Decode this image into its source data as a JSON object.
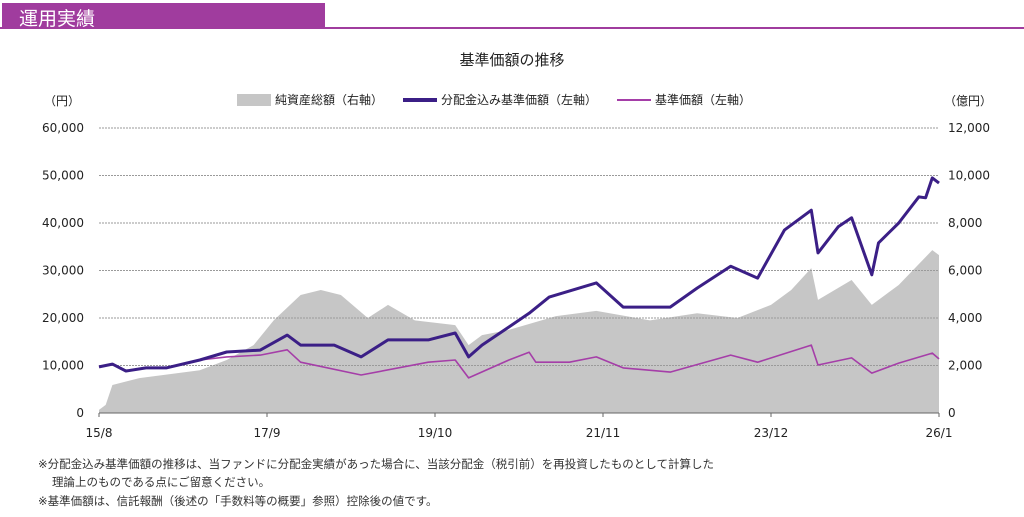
{
  "header": {
    "section_title": "運用実績",
    "accent_color": "#a03c9e"
  },
  "chart_data": {
    "type": "line",
    "title": "基準価額の推移",
    "left_unit": "（円）",
    "right_unit": "（億円）",
    "ylim_left": [
      0,
      60000
    ],
    "ylim_right": [
      0,
      12000
    ],
    "yticks_left": [
      "0",
      "10,000",
      "20,000",
      "30,000",
      "40,000",
      "50,000",
      "60,000"
    ],
    "yticks_right": [
      "0",
      "2,000",
      "4,000",
      "6,000",
      "8,000",
      "10,000",
      "12,000"
    ],
    "xlim": [
      "2015-08",
      "2026-01"
    ],
    "xticks": [
      {
        "date": "2015-08",
        "label": "15/8"
      },
      {
        "date": "2017-09",
        "label": "17/9"
      },
      {
        "date": "2019-10",
        "label": "19/10"
      },
      {
        "date": "2021-11",
        "label": "21/11"
      },
      {
        "date": "2023-12",
        "label": "23/12"
      },
      {
        "date": "2026-01",
        "label": "26/1"
      }
    ],
    "grid": true,
    "legend_position": "top",
    "series": [
      {
        "name": "純資産総額（右軸）",
        "kind": "area",
        "axis": "right",
        "color": "#c6c6c6",
        "points": [
          [
            "2015-08",
            130
          ],
          [
            "2015-09",
            340
          ],
          [
            "2015-10",
            1180
          ],
          [
            "2016-02",
            1470
          ],
          [
            "2016-11",
            1800
          ],
          [
            "2017-03",
            2230
          ],
          [
            "2017-07",
            2860
          ],
          [
            "2017-10",
            3900
          ],
          [
            "2018-02",
            4970
          ],
          [
            "2018-05",
            5180
          ],
          [
            "2018-08",
            4970
          ],
          [
            "2018-12",
            4000
          ],
          [
            "2019-03",
            4550
          ],
          [
            "2019-07",
            3900
          ],
          [
            "2020-01",
            3700
          ],
          [
            "2020-03",
            2860
          ],
          [
            "2020-05",
            3280
          ],
          [
            "2020-09",
            3500
          ],
          [
            "2021-04",
            4080
          ],
          [
            "2021-10",
            4300
          ],
          [
            "2022-06",
            3900
          ],
          [
            "2023-01",
            4200
          ],
          [
            "2023-07",
            4000
          ],
          [
            "2023-12",
            4550
          ],
          [
            "2024-03",
            5180
          ],
          [
            "2024-06",
            6100
          ],
          [
            "2024-07",
            4760
          ],
          [
            "2024-12",
            5600
          ],
          [
            "2025-03",
            4550
          ],
          [
            "2025-07",
            5390
          ],
          [
            "2025-12",
            6860
          ],
          [
            "2026-01",
            6650
          ]
        ]
      },
      {
        "name": "分配金込み基準価額（左軸）",
        "kind": "line",
        "axis": "left",
        "color": "#3b1f86",
        "points": [
          [
            "2015-08",
            9700
          ],
          [
            "2015-10",
            10300
          ],
          [
            "2015-12",
            8850
          ],
          [
            "2016-03",
            9500
          ],
          [
            "2016-06",
            9500
          ],
          [
            "2016-11",
            11150
          ],
          [
            "2017-03",
            12850
          ],
          [
            "2017-08",
            13250
          ],
          [
            "2017-12",
            16400
          ],
          [
            "2018-02",
            14300
          ],
          [
            "2018-07",
            14300
          ],
          [
            "2018-11",
            11800
          ],
          [
            "2019-03",
            15400
          ],
          [
            "2019-09",
            15400
          ],
          [
            "2020-01",
            16850
          ],
          [
            "2020-03",
            11800
          ],
          [
            "2020-05",
            14300
          ],
          [
            "2020-09",
            18100
          ],
          [
            "2020-12",
            21000
          ],
          [
            "2021-03",
            24400
          ],
          [
            "2021-10",
            27400
          ],
          [
            "2022-02",
            22300
          ],
          [
            "2022-06",
            22300
          ],
          [
            "2022-09",
            22300
          ],
          [
            "2023-01",
            26300
          ],
          [
            "2023-06",
            30900
          ],
          [
            "2023-10",
            28400
          ],
          [
            "2024-02",
            38500
          ],
          [
            "2024-06",
            42700
          ],
          [
            "2024-07",
            33700
          ],
          [
            "2024-10",
            39200
          ],
          [
            "2024-12",
            41100
          ],
          [
            "2025-03",
            29100
          ],
          [
            "2025-04",
            35800
          ],
          [
            "2025-07",
            40000
          ],
          [
            "2025-10",
            45500
          ],
          [
            "2025-11",
            45300
          ],
          [
            "2025-12",
            49500
          ],
          [
            "2026-01",
            48400
          ]
        ]
      },
      {
        "name": "基準価額（左軸）",
        "kind": "line",
        "axis": "left",
        "color": "#a53ea8",
        "points": [
          [
            "2015-08",
            9700
          ],
          [
            "2015-10",
            10300
          ],
          [
            "2015-12",
            8850
          ],
          [
            "2016-03",
            9500
          ],
          [
            "2016-06",
            9500
          ],
          [
            "2016-11",
            11150
          ],
          [
            "2017-03",
            11800
          ],
          [
            "2017-08",
            12200
          ],
          [
            "2017-12",
            13300
          ],
          [
            "2018-02",
            10700
          ],
          [
            "2018-11",
            8000
          ],
          [
            "2019-09",
            10700
          ],
          [
            "2020-01",
            11150
          ],
          [
            "2020-03",
            7400
          ],
          [
            "2020-09",
            11150
          ],
          [
            "2020-12",
            12800
          ],
          [
            "2021-01",
            10700
          ],
          [
            "2021-06",
            10700
          ],
          [
            "2021-10",
            11800
          ],
          [
            "2022-02",
            9500
          ],
          [
            "2022-09",
            8600
          ],
          [
            "2023-06",
            12200
          ],
          [
            "2023-10",
            10700
          ],
          [
            "2024-06",
            14300
          ],
          [
            "2024-07",
            10100
          ],
          [
            "2024-12",
            11600
          ],
          [
            "2025-03",
            8400
          ],
          [
            "2025-07",
            10500
          ],
          [
            "2025-12",
            12600
          ],
          [
            "2026-01",
            11400
          ]
        ]
      }
    ]
  },
  "notes": [
    "※分配金込み基準価額の推移は、当ファンドに分配金実績があった場合に、当該分配金（税引前）を再投資したものとして計算した",
    "理論上のものである点にご留意ください。",
    "※基準価額は、信託報酬（後述の「手数料等の概要」参照）控除後の値です。"
  ]
}
